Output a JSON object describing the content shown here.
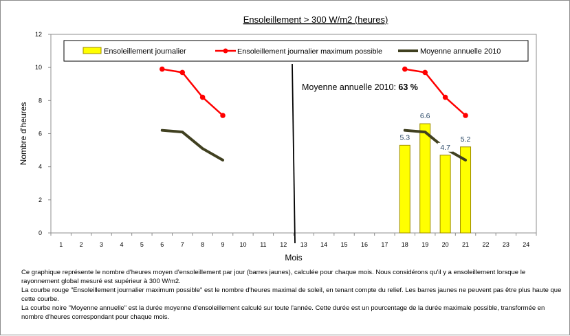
{
  "chart_data": {
    "type": "bar",
    "title": "Ensoleillement > 300 W/m2 (heures)",
    "xlabel": "Mois",
    "ylabel": "Nombre d'heures",
    "ylim": [
      0,
      12
    ],
    "yticks": [
      0,
      2,
      4,
      6,
      8,
      10,
      12
    ],
    "xlim": [
      0.5,
      24.5
    ],
    "categories": [
      "1",
      "2",
      "3",
      "4",
      "5",
      "6",
      "7",
      "8",
      "9",
      "10",
      "11",
      "12",
      "13",
      "14",
      "15",
      "16",
      "17",
      "18",
      "19",
      "20",
      "21",
      "22",
      "23",
      "24"
    ],
    "grid": false,
    "legend": "top",
    "series": [
      {
        "name": "Ensoleillement journalier",
        "type": "bar",
        "color": "#ffff00",
        "x": [
          18,
          19,
          20,
          21
        ],
        "values": [
          5.3,
          6.6,
          4.7,
          5.2
        ],
        "labels": [
          "5.3",
          "6.6",
          "4.7",
          "5.2"
        ]
      },
      {
        "name": "Ensoleillement journalier maximum possible",
        "type": "line",
        "color": "#ff0000",
        "segments": [
          {
            "x": [
              6,
              7,
              8,
              9
            ],
            "values": [
              9.9,
              9.7,
              8.2,
              7.1
            ]
          },
          {
            "x": [
              18,
              19,
              20,
              21
            ],
            "values": [
              9.9,
              9.7,
              8.2,
              7.1
            ]
          }
        ]
      },
      {
        "name": "Moyenne annuelle 2010",
        "type": "line",
        "color": "#404020",
        "segments": [
          {
            "x": [
              6,
              7,
              8,
              9
            ],
            "values": [
              6.2,
              6.1,
              5.1,
              4.4
            ]
          },
          {
            "x": [
              18,
              19,
              20,
              21
            ],
            "values": [
              6.2,
              6.1,
              5.1,
              4.4
            ]
          }
        ]
      }
    ],
    "separator_x": 12.5,
    "annotation": {
      "prefix": "Moyenne annuelle 2010: ",
      "value": "63 %"
    }
  },
  "description": [
    "Ce graphique représente le nombre d'heures moyen d'ensoleillement par jour (barres jaunes), calculée pour chaque mois. Nous considérons qu'il y a ensoleillement lorsque le rayonnement global mesuré est supérieur à 300 W/m2.",
    "La courbe rouge \"Ensoleillement journalier maximum possible\" est le nombre d'heures maximal de soleil, en tenant compte du relief. Les barres jaunes ne peuvent pas être plus haute que cette courbe.",
    "La courbe noire \"Moyenne annuelle\" est la durée moyenne d'ensoleillement calculé sur toute l'année. Cette durée est un pourcentage de la durée maximale possible, transformée en nombre d'heures correspondant pour chaque mois."
  ]
}
